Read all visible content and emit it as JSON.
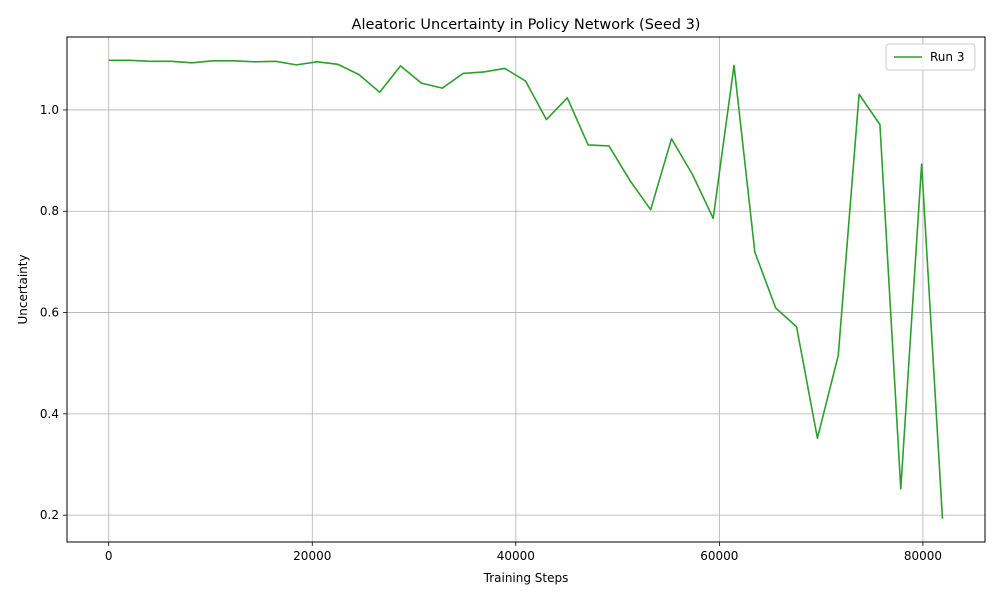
{
  "chart_data": {
    "type": "line",
    "title": "Aleatoric Uncertainty in Policy Network (Seed 3)",
    "xlabel": "Training Steps",
    "ylabel": "Uncertainty",
    "xlim": [
      -4100,
      86100
    ],
    "ylim": [
      0.147,
      1.144
    ],
    "xticks": [
      0,
      20000,
      40000,
      60000,
      80000
    ],
    "yticks": [
      0.2,
      0.4,
      0.6,
      0.8,
      1.0
    ],
    "xtick_labels": [
      "0",
      "20000",
      "40000",
      "60000",
      "80000"
    ],
    "ytick_labels": [
      "0.2",
      "0.4",
      "0.6",
      "0.8",
      "1.0"
    ],
    "grid": true,
    "legend_position": "top-right",
    "series": [
      {
        "name": "Run 3",
        "color": "#2ca02c",
        "x": [
          0,
          2048,
          4096,
          6144,
          8192,
          10240,
          12288,
          14336,
          16384,
          18432,
          20480,
          22528,
          24576,
          26624,
          28672,
          30720,
          32768,
          34816,
          36864,
          38912,
          40960,
          43008,
          45056,
          47104,
          49152,
          51200,
          53248,
          55296,
          57344,
          59392,
          61440,
          63488,
          65536,
          67584,
          69632,
          71680,
          73728,
          75776,
          77824,
          79872,
          81920
        ],
        "y": [
          1.098,
          1.098,
          1.096,
          1.096,
          1.093,
          1.097,
          1.097,
          1.095,
          1.096,
          1.089,
          1.095,
          1.09,
          1.07,
          1.035,
          1.087,
          1.053,
          1.043,
          1.072,
          1.075,
          1.082,
          1.057,
          0.981,
          1.024,
          0.931,
          0.929,
          0.861,
          0.803,
          0.943,
          0.873,
          0.786,
          1.088,
          0.719,
          0.609,
          0.572,
          0.352,
          0.515,
          1.031,
          0.971,
          0.252,
          0.893,
          0.193
        ]
      }
    ]
  }
}
